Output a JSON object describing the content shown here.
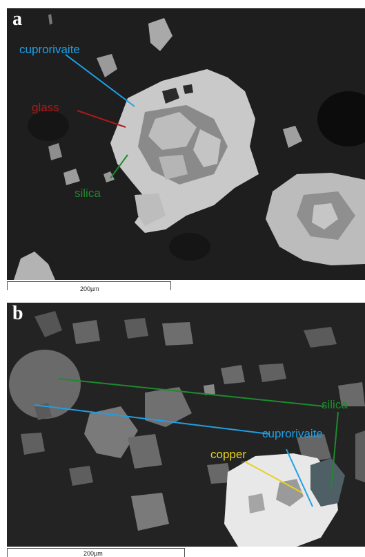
{
  "panel_a": {
    "letter": "a",
    "labels": {
      "cuprorivaite": "cuprorivaite",
      "glass": "glass",
      "silica": "silica"
    },
    "scale_bar": "200µm"
  },
  "panel_b": {
    "letter": "b",
    "labels": {
      "silica": "silica",
      "cuprorivaite": "cuprorivaite",
      "copper": "copper"
    },
    "scale_bar": "200µm"
  },
  "colors": {
    "cuprorivaite": "#1ea0e6",
    "glass": "#b01818",
    "silica": "#1e8a2e",
    "copper": "#e6d21e"
  }
}
